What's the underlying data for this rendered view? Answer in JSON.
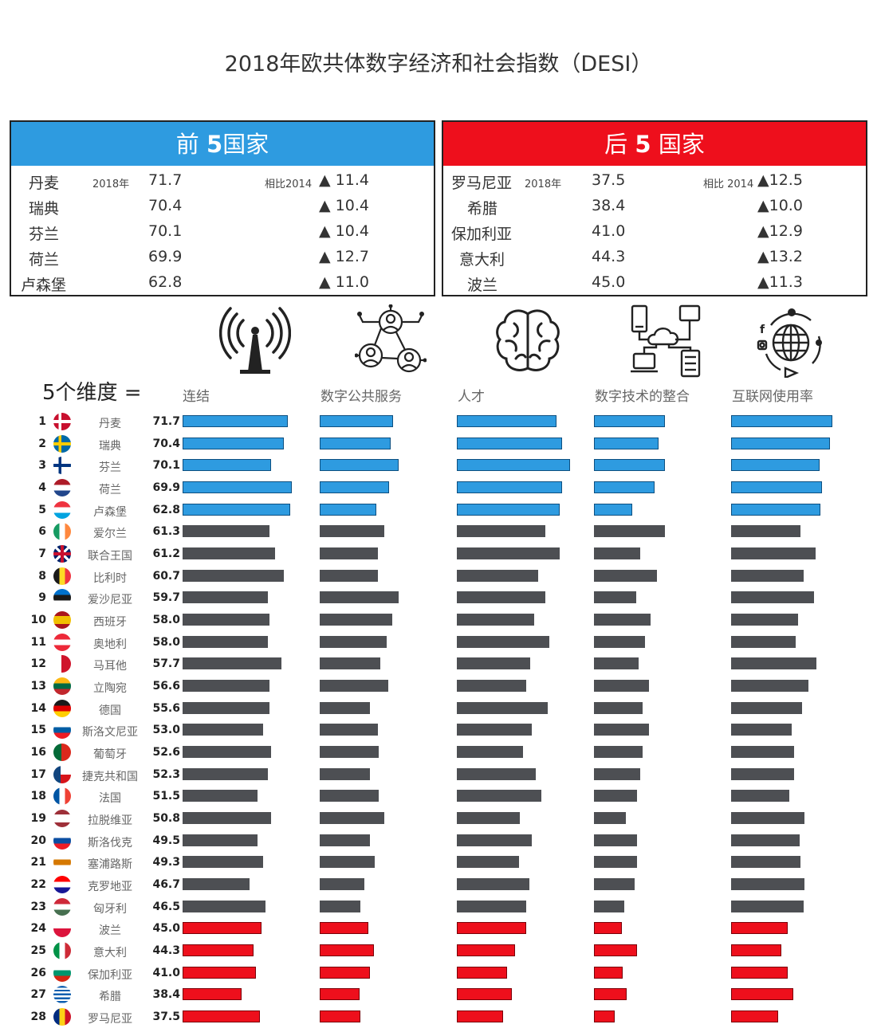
{
  "title": "2018年欧共体数字经济和社会指数（DESI）",
  "colors": {
    "top": "#2e9be0",
    "middle": "#4d4f53",
    "bottom": "#ee0f1c"
  },
  "top5_box": {
    "header_prefix": "前",
    "header_number": "5",
    "header_suffix": "国家",
    "year_label": "2018年",
    "compare_label": "相比2014",
    "rows": [
      {
        "country": "丹麦",
        "score": "71.7",
        "change": "▲ 11.4"
      },
      {
        "country": "瑞典",
        "score": "70.4",
        "change": "▲ 10.4"
      },
      {
        "country": "芬兰",
        "score": "70.1",
        "change": "▲ 10.4"
      },
      {
        "country": "荷兰",
        "score": "69.9",
        "change": "▲ 12.7"
      },
      {
        "country": "卢森堡",
        "score": "62.8",
        "change": "▲ 11.0"
      }
    ]
  },
  "bottom5_box": {
    "header_prefix": "后",
    "header_number": "5",
    "header_suffix": "国家",
    "year_label": "2018年",
    "compare_label": "相比 2014",
    "rows": [
      {
        "country": "罗马尼亚",
        "score": "37.5",
        "change": "▲12.5"
      },
      {
        "country": "希腊",
        "score": "38.4",
        "change": "▲10.0"
      },
      {
        "country": "保加利亚",
        "score": "41.0",
        "change": "▲12.9"
      },
      {
        "country": "意大利",
        "score": "44.3",
        "change": "▲13.2"
      },
      {
        "country": "波兰",
        "score": "45.0",
        "change": "▲11.3"
      }
    ]
  },
  "dimensions_heading": "5个维度 =",
  "dimensions": [
    {
      "label": "连结",
      "icon": "antenna-icon"
    },
    {
      "label": "数字公共服务",
      "icon": "people-network-icon"
    },
    {
      "label": "人才",
      "icon": "brain-icon"
    },
    {
      "label": "数字技术的整合",
      "icon": "cloud-devices-icon"
    },
    {
      "label": "互联网使用率",
      "icon": "globe-social-icon"
    }
  ],
  "chart_data": {
    "type": "bar",
    "title": "2018年欧共体数字经济和社会指数（DESI）",
    "series": [
      {
        "name": "连结",
        "values": [
          80,
          77,
          67,
          83,
          82,
          66,
          70,
          77,
          65,
          66,
          65,
          75,
          66,
          66,
          61,
          67,
          65,
          57,
          67,
          57,
          61,
          51,
          63,
          60,
          54,
          56,
          45,
          59
        ]
      },
      {
        "name": "数字公共服务",
        "values": [
          56,
          54,
          60,
          53,
          43,
          49,
          44,
          44,
          60,
          55,
          51,
          46,
          52,
          38,
          44,
          45,
          38,
          45,
          49,
          38,
          42,
          34,
          31,
          37,
          41,
          38,
          30,
          31
        ]
      },
      {
        "name": "人才",
        "values": [
          76,
          80,
          86,
          80,
          78,
          67,
          78,
          62,
          67,
          59,
          70,
          56,
          53,
          69,
          57,
          50,
          60,
          64,
          48,
          57,
          47,
          55,
          53,
          53,
          44,
          38,
          42,
          35
        ]
      },
      {
        "name": "数字技术的整合",
        "values": [
          54,
          49,
          54,
          46,
          29,
          54,
          35,
          48,
          32,
          43,
          39,
          34,
          42,
          37,
          42,
          37,
          35,
          33,
          24,
          33,
          33,
          31,
          23,
          21,
          33,
          22,
          25,
          16
        ]
      },
      {
        "name": "互联网使用率",
        "values": [
          77,
          75,
          67,
          69,
          68,
          53,
          64,
          55,
          63,
          51,
          49,
          65,
          59,
          54,
          46,
          48,
          48,
          44,
          56,
          52,
          53,
          56,
          55,
          43,
          38,
          43,
          47,
          36
        ]
      }
    ],
    "countries": [
      {
        "rank": "1",
        "name": "丹麦",
        "score": "71.7",
        "group": "top"
      },
      {
        "rank": "2",
        "name": "瑞典",
        "score": "70.4",
        "group": "top"
      },
      {
        "rank": "3",
        "name": "芬兰",
        "score": "70.1",
        "group": "top"
      },
      {
        "rank": "4",
        "name": "荷兰",
        "score": "69.9",
        "group": "top"
      },
      {
        "rank": "5",
        "name": "卢森堡",
        "score": "62.8",
        "group": "top"
      },
      {
        "rank": "6",
        "name": "爱尔兰",
        "score": "61.3",
        "group": "middle"
      },
      {
        "rank": "7",
        "name": "联合王国",
        "score": "61.2",
        "group": "middle"
      },
      {
        "rank": "8",
        "name": "比利时",
        "score": "60.7",
        "group": "middle"
      },
      {
        "rank": "9",
        "name": "爱沙尼亚",
        "score": "59.7",
        "group": "middle"
      },
      {
        "rank": "10",
        "name": "西班牙",
        "score": "58.0",
        "group": "middle"
      },
      {
        "rank": "11",
        "name": "奥地利",
        "score": "58.0",
        "group": "middle"
      },
      {
        "rank": "12",
        "name": "马耳他",
        "score": "57.7",
        "group": "middle"
      },
      {
        "rank": "13",
        "name": "立陶宛",
        "score": "56.6",
        "group": "middle"
      },
      {
        "rank": "14",
        "name": "德国",
        "score": "55.6",
        "group": "middle"
      },
      {
        "rank": "15",
        "name": "斯洛文尼亚",
        "score": "53.0",
        "group": "middle"
      },
      {
        "rank": "16",
        "name": "葡萄牙",
        "score": "52.6",
        "group": "middle"
      },
      {
        "rank": "17",
        "name": "捷克共和国",
        "score": "52.3",
        "group": "middle"
      },
      {
        "rank": "18",
        "name": "法国",
        "score": "51.5",
        "group": "middle"
      },
      {
        "rank": "19",
        "name": "拉脱维亚",
        "score": "50.8",
        "group": "middle"
      },
      {
        "rank": "20",
        "name": "斯洛伐克",
        "score": "49.5",
        "group": "middle"
      },
      {
        "rank": "21",
        "name": "塞浦路斯",
        "score": "49.3",
        "group": "middle"
      },
      {
        "rank": "22",
        "name": "克罗地亚",
        "score": "46.7",
        "group": "middle"
      },
      {
        "rank": "23",
        "name": "匈牙利",
        "score": "46.5",
        "group": "middle"
      },
      {
        "rank": "24",
        "name": "波兰",
        "score": "45.0",
        "group": "bottom"
      },
      {
        "rank": "25",
        "name": "意大利",
        "score": "44.3",
        "group": "bottom"
      },
      {
        "rank": "26",
        "name": "保加利亚",
        "score": "41.0",
        "group": "bottom"
      },
      {
        "rank": "27",
        "name": "希腊",
        "score": "38.4",
        "group": "bottom"
      },
      {
        "rank": "28",
        "name": "罗马尼亚",
        "score": "37.5",
        "group": "bottom"
      }
    ],
    "flags": [
      {
        "type": "nordic",
        "colors": [
          "#c8102e",
          "#ffffff"
        ]
      },
      {
        "type": "nordic",
        "colors": [
          "#006aa7",
          "#fecc00"
        ]
      },
      {
        "type": "nordic",
        "colors": [
          "#ffffff",
          "#003580"
        ]
      },
      {
        "type": "h",
        "colors": [
          "#ae1c28",
          "#ffffff",
          "#21468b"
        ]
      },
      {
        "type": "h",
        "colors": [
          "#ef3340",
          "#ffffff",
          "#00a3e0"
        ]
      },
      {
        "type": "v",
        "colors": [
          "#169b62",
          "#ffffff",
          "#ff883e"
        ]
      },
      {
        "type": "uk",
        "colors": [
          "#012169",
          "#ffffff",
          "#c8102e"
        ]
      },
      {
        "type": "v",
        "colors": [
          "#1a1a1a",
          "#fdda24",
          "#ef3340"
        ]
      },
      {
        "type": "h",
        "colors": [
          "#0072ce",
          "#1a1a1a",
          "#ffffff"
        ]
      },
      {
        "type": "h3",
        "colors": [
          "#aa151b",
          "#f1bf00",
          "#aa151b"
        ]
      },
      {
        "type": "h",
        "colors": [
          "#ed2939",
          "#ffffff",
          "#ed2939"
        ]
      },
      {
        "type": "v2",
        "colors": [
          "#ffffff",
          "#cf142b"
        ]
      },
      {
        "type": "h",
        "colors": [
          "#fdb913",
          "#006a44",
          "#c1272d"
        ]
      },
      {
        "type": "h",
        "colors": [
          "#1a1a1a",
          "#dd0000",
          "#ffce00"
        ]
      },
      {
        "type": "h",
        "colors": [
          "#ffffff",
          "#005da4",
          "#ed1c24"
        ]
      },
      {
        "type": "v2",
        "colors": [
          "#046a38",
          "#da291c"
        ]
      },
      {
        "type": "cz",
        "colors": [
          "#ffffff",
          "#d7141a",
          "#11457e"
        ]
      },
      {
        "type": "v",
        "colors": [
          "#0055a4",
          "#ffffff",
          "#ef4135"
        ]
      },
      {
        "type": "h3",
        "colors": [
          "#9e3039",
          "#ffffff",
          "#9e3039"
        ]
      },
      {
        "type": "h",
        "colors": [
          "#ffffff",
          "#0b4ea2",
          "#ee1c25"
        ]
      },
      {
        "type": "h",
        "colors": [
          "#ffffff",
          "#d57800",
          "#ffffff"
        ]
      },
      {
        "type": "h",
        "colors": [
          "#ff0000",
          "#ffffff",
          "#171796"
        ]
      },
      {
        "type": "h",
        "colors": [
          "#ce2939",
          "#ffffff",
          "#477050"
        ]
      },
      {
        "type": "h2",
        "colors": [
          "#ffffff",
          "#dc143c"
        ]
      },
      {
        "type": "v",
        "colors": [
          "#009246",
          "#ffffff",
          "#ce2b37"
        ]
      },
      {
        "type": "h",
        "colors": [
          "#ffffff",
          "#00966e",
          "#d62612"
        ]
      },
      {
        "type": "gr",
        "colors": [
          "#0d5eaf",
          "#ffffff"
        ]
      },
      {
        "type": "v",
        "colors": [
          "#002b7f",
          "#fcd116",
          "#ce1126"
        ]
      }
    ]
  }
}
